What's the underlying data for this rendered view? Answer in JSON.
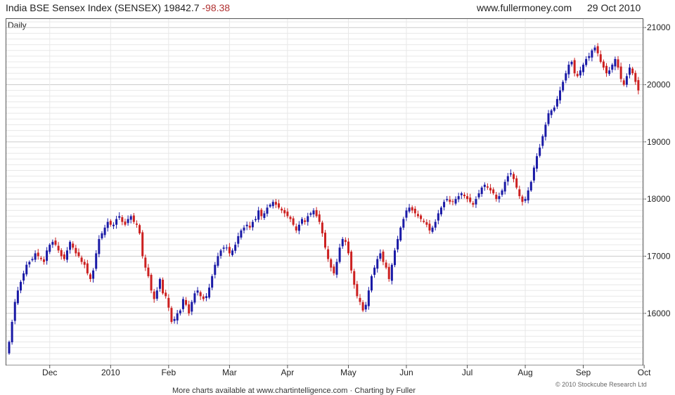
{
  "header": {
    "title": "India BSE Sensex Index (SENSEX) 19842.7",
    "change": "-98.38",
    "site": "www.fullermoney.com",
    "date": "29 Oct 2010"
  },
  "period_label": "Daily",
  "credit": "© 2010 Stockcube Research Ltd",
  "footer": "More charts available at www.chartintelligence.com · Charting by Fuller",
  "colors": {
    "up": "#1a1aa6",
    "down": "#cc2020",
    "grid": "#cccccc",
    "minor_grid": "#e8e8e8"
  },
  "chart_data": {
    "type": "candlestick",
    "y_axis": {
      "position": "right",
      "ylim": [
        15100,
        21150
      ],
      "ticks": [
        16000,
        17000,
        18000,
        19000,
        20000,
        21000
      ]
    },
    "x_axis": {
      "tick_labels": [
        "Dec",
        "2010",
        "Feb",
        "Mar",
        "Apr",
        "May",
        "Jun",
        "Jul",
        "Aug",
        "Sep",
        "Oct"
      ],
      "tick_index": [
        14,
        35,
        55,
        76,
        96,
        117,
        137,
        158,
        178,
        198,
        219
      ]
    },
    "grid": true,
    "close": [
      15500,
      15850,
      16200,
      16400,
      16550,
      16700,
      16850,
      16900,
      16950,
      17050,
      17000,
      16950,
      16900,
      17100,
      17200,
      17250,
      17200,
      17100,
      17000,
      16950,
      17100,
      17250,
      17150,
      17050,
      17000,
      16900,
      16850,
      16700,
      16600,
      16750,
      17050,
      17300,
      17400,
      17500,
      17600,
      17550,
      17550,
      17650,
      17700,
      17600,
      17550,
      17650,
      17700,
      17600,
      17550,
      17400,
      17000,
      16800,
      16650,
      16400,
      16250,
      16400,
      16600,
      16350,
      16300,
      16100,
      15850,
      15900,
      16000,
      16050,
      16250,
      16150,
      16000,
      16200,
      16350,
      16400,
      16300,
      16250,
      16300,
      16450,
      16650,
      16850,
      17000,
      17100,
      17150,
      17150,
      17050,
      17100,
      17200,
      17350,
      17450,
      17500,
      17550,
      17500,
      17600,
      17650,
      17800,
      17700,
      17750,
      17850,
      17900,
      17950,
      17900,
      17850,
      17800,
      17750,
      17700,
      17650,
      17550,
      17450,
      17550,
      17650,
      17600,
      17700,
      17750,
      17800,
      17700,
      17600,
      17400,
      17150,
      16950,
      16800,
      16700,
      16900,
      17150,
      17300,
      17250,
      17050,
      16750,
      16500,
      16300,
      16200,
      16050,
      16150,
      16400,
      16650,
      16800,
      16950,
      17050,
      16900,
      16800,
      16600,
      16850,
      17100,
      17300,
      17500,
      17650,
      17800,
      17850,
      17800,
      17750,
      17700,
      17650,
      17600,
      17550,
      17450,
      17500,
      17600,
      17750,
      17850,
      17950,
      18000,
      17950,
      17950,
      18000,
      18050,
      18100,
      18050,
      18000,
      17950,
      17900,
      18000,
      18100,
      18200,
      18250,
      18200,
      18150,
      18100,
      18000,
      18050,
      18150,
      18300,
      18400,
      18450,
      18350,
      18200,
      18050,
      17950,
      18000,
      18150,
      18300,
      18550,
      18750,
      18900,
      19100,
      19300,
      19500,
      19550,
      19600,
      19750,
      19900,
      20050,
      20200,
      20350,
      20400,
      20200,
      20150,
      20250,
      20350,
      20450,
      20500,
      20600,
      20650,
      20550,
      20400,
      20300,
      20200,
      20250,
      20350,
      20450,
      20300,
      20100,
      20000,
      20150,
      20300,
      20200,
      20050,
      19900
    ],
    "last": 19842.7,
    "change": -98.38
  }
}
